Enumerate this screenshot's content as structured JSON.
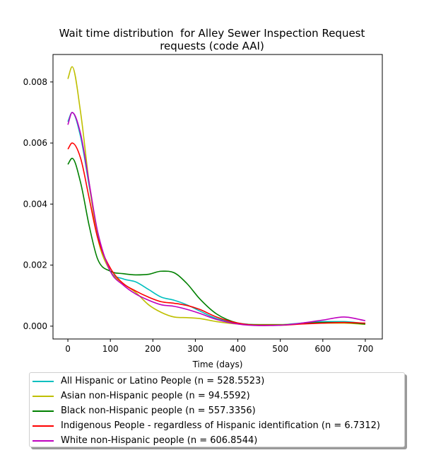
{
  "chart_data": {
    "type": "line",
    "title_lines": [
      "Wait time distribution  for Alley Sewer Inspection Request",
      "requests (code AAI)"
    ],
    "xlabel": "Time (days)",
    "ylabel": "",
    "xlim": [
      -35,
      740
    ],
    "ylim": [
      -0.00042,
      0.0089
    ],
    "xticks": [
      0,
      100,
      200,
      300,
      400,
      500,
      600,
      700
    ],
    "yticks": [
      0.0,
      0.002,
      0.004,
      0.006,
      0.008
    ],
    "ytick_labels": [
      "0.000",
      "0.002",
      "0.004",
      "0.006",
      "0.008"
    ],
    "grid": false,
    "legend_position": "below",
    "series": [
      {
        "name": "All Hispanic or Latino People (n = 528.5523)",
        "color": "#00bfbf",
        "x": [
          0,
          10,
          30,
          50,
          70,
          100,
          130,
          160,
          190,
          220,
          250,
          280,
          310,
          350,
          400,
          450,
          500,
          550,
          600,
          650,
          700
        ],
        "y": [
          0.0067,
          0.007,
          0.0062,
          0.0046,
          0.003,
          0.0018,
          0.00155,
          0.00145,
          0.0012,
          0.00095,
          0.00085,
          0.0007,
          0.0005,
          0.00025,
          0.0001,
          5e-05,
          5e-05,
          0.0001,
          0.00015,
          0.00015,
          8e-05
        ]
      },
      {
        "name": "Asian non-Hispanic people (n = 94.5592)",
        "color": "#bfbf00",
        "x": [
          0,
          10,
          30,
          50,
          70,
          100,
          130,
          160,
          190,
          220,
          250,
          280,
          310,
          350,
          400,
          450,
          500,
          550,
          600,
          650,
          700
        ],
        "y": [
          0.0081,
          0.0085,
          0.007,
          0.0047,
          0.0029,
          0.0018,
          0.0014,
          0.0011,
          0.0007,
          0.00045,
          0.0003,
          0.00028,
          0.00025,
          0.00015,
          7e-05,
          5e-05,
          5e-05,
          8e-05,
          0.0001,
          0.0001,
          6e-05
        ]
      },
      {
        "name": "Black non-Hispanic people (n = 557.3356)",
        "color": "#008000",
        "x": [
          0,
          10,
          30,
          50,
          70,
          100,
          130,
          160,
          190,
          220,
          250,
          280,
          310,
          350,
          400,
          450,
          500,
          550,
          600,
          650,
          700
        ],
        "y": [
          0.0053,
          0.0055,
          0.0047,
          0.0033,
          0.0022,
          0.0018,
          0.00172,
          0.00168,
          0.0017,
          0.0018,
          0.00175,
          0.0014,
          0.0009,
          0.0004,
          0.0001,
          4e-05,
          4e-05,
          8e-05,
          0.00012,
          0.00012,
          7e-05
        ]
      },
      {
        "name": "Indigenous People - regardless of Hispanic identification (n = 6.7312)",
        "color": "#ff0000",
        "x": [
          0,
          10,
          30,
          50,
          70,
          100,
          130,
          160,
          190,
          220,
          250,
          280,
          310,
          350,
          400,
          450,
          500,
          550,
          600,
          650,
          700
        ],
        "y": [
          0.0058,
          0.006,
          0.0055,
          0.0042,
          0.0029,
          0.0019,
          0.0014,
          0.00115,
          0.00095,
          0.0008,
          0.00075,
          0.00068,
          0.00055,
          0.0003,
          0.0001,
          3e-05,
          3e-05,
          7e-05,
          0.0001,
          0.00012,
          0.0001
        ]
      },
      {
        "name": "White non-Hispanic people (n = 606.8544)",
        "color": "#bf00bf",
        "x": [
          0,
          10,
          30,
          50,
          70,
          100,
          130,
          160,
          190,
          220,
          250,
          280,
          310,
          350,
          400,
          450,
          500,
          550,
          600,
          650,
          700
        ],
        "y": [
          0.0066,
          0.007,
          0.0063,
          0.0047,
          0.0031,
          0.0018,
          0.00135,
          0.00105,
          0.00085,
          0.0007,
          0.00065,
          0.00055,
          0.00042,
          0.00022,
          7e-05,
          2e-05,
          3e-05,
          0.0001,
          0.0002,
          0.0003,
          0.00018
        ]
      }
    ]
  }
}
